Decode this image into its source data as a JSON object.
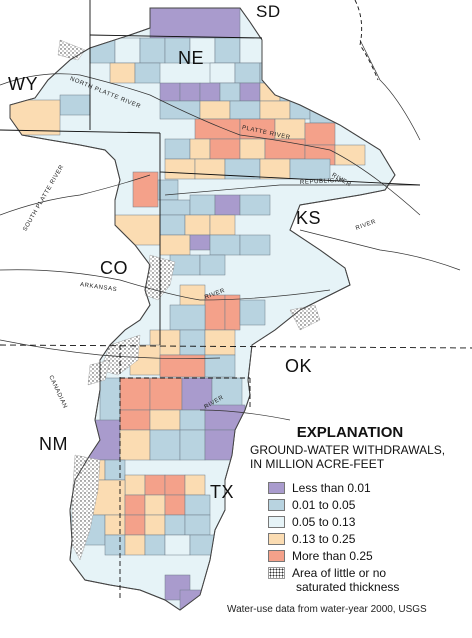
{
  "states": {
    "sd": "SD",
    "ne": "NE",
    "wy": "WY",
    "ks": "KS",
    "co": "CO",
    "ok": "OK",
    "nm": "NM",
    "tx": "TX"
  },
  "rivers": {
    "north_platte": "NORTH PLATTE RIVER",
    "platte": "PLATTE RIVER",
    "south_platte": "SOUTH PLATTE RIVER",
    "republican": "REPUBLICAN",
    "river_ks_1": "RIVER",
    "river_ks_2": "RIVER",
    "arkansas": "ARKANSAS",
    "river_ark": "RIVER",
    "canadian": "CANADIAN",
    "river_ok": "RIVER"
  },
  "legend": {
    "title": "EXPLANATION",
    "subtitle_1": "GROUND-WATER WITHDRAWALS,",
    "subtitle_2": "IN MILLION ACRE-FEET",
    "items": [
      {
        "label": "Less than 0.01",
        "color": "#a99bcd"
      },
      {
        "label": "0.01 to 0.05",
        "color": "#b8d3e0"
      },
      {
        "label": "0.05 to 0.13",
        "color": "#e6f3f7"
      },
      {
        "label": "0.13 to 0.25",
        "color": "#fbdcb2"
      },
      {
        "label": "More than 0.25",
        "color": "#f4a18a"
      }
    ],
    "stipple_label_1": "Area of little or no",
    "stipple_label_2": "saturated thickness"
  },
  "credit": "Water-use data from water-year 2000, USGS"
}
